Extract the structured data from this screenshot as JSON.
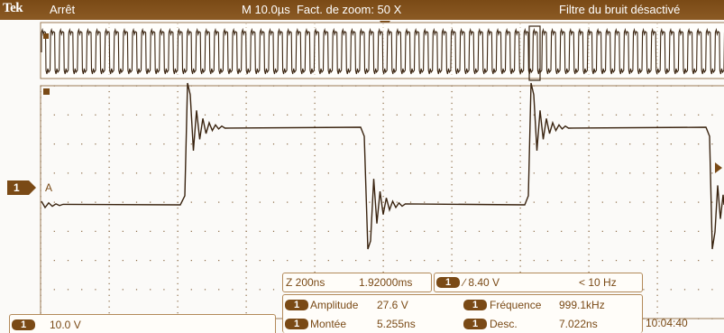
{
  "header": {
    "brand": "Tek",
    "acquisition_state": "Arrêt",
    "timebase": "M 10.0µs",
    "zoom": "Fact. de zoom: 50 X",
    "filter": "Filtre du bruit désactivé"
  },
  "channel": {
    "marker": "1",
    "ref_marker": "A",
    "scale": "10.0 V"
  },
  "zoom_panel": {
    "z_label": "Z 200ns",
    "position": "1.92000ms"
  },
  "trigger": {
    "chip": "1",
    "slope_level": "∕ 8.40 V",
    "frequency": "< 10 Hz"
  },
  "measurements": {
    "amplitude_label": "Amplitude",
    "amplitude_value": "27.6 V",
    "rise_label": "Montée",
    "rise_value": "5.255ns",
    "frequency_label": "Fréquence",
    "frequency_value": "999.1kHz",
    "fall_label": "Desc.",
    "fall_value": "7.022ns"
  },
  "clock": "10:04:40",
  "colors": {
    "trace": "#3a2410",
    "accent": "#7a4a16",
    "grid": "#9b7a55"
  }
}
